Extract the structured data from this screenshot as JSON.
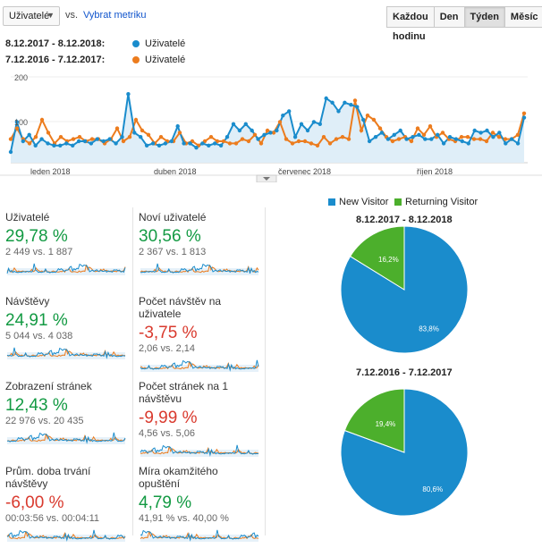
{
  "toolbar": {
    "metric_select": "Uživatelé",
    "vs_label": "vs.",
    "select_metric_link": "Vybrat metriku",
    "buttons": [
      "Každou hodinu",
      "Den",
      "Týden",
      "Měsíc"
    ],
    "active_button": "Týden"
  },
  "legend": {
    "range1": "8.12.2017 - 8.12.2018:",
    "range1_metric": "Uživatelé",
    "range2": "7.12.2016 - 7.12.2017:",
    "range2_metric": "Uživatelé"
  },
  "colors": {
    "blue": "#1a8ccc",
    "orange": "#ec7c1e",
    "green": "#4caf2c",
    "area": "#dfeef8"
  },
  "chart_data": {
    "type": "line",
    "y_ticks": [
      "200",
      "100"
    ],
    "ylim": [
      0,
      200
    ],
    "x_labels": [
      "leden 2018",
      "duben 2018",
      "červenec 2018",
      "říjen 2018"
    ],
    "series": [
      {
        "name": "Uživatelé (8.12.2017 - 8.12.2018)",
        "values": [
          25,
          95,
          50,
          65,
          40,
          55,
          45,
          40,
          40,
          45,
          40,
          50,
          50,
          45,
          55,
          50,
          55,
          45,
          60,
          160,
          70,
          60,
          40,
          45,
          40,
          45,
          50,
          85,
          45,
          45,
          35,
          45,
          40,
          45,
          40,
          60,
          90,
          75,
          90,
          75,
          55,
          65,
          70,
          75,
          110,
          120,
          60,
          90,
          75,
          95,
          90,
          150,
          140,
          120,
          140,
          135,
          130,
          100,
          50,
          60,
          70,
          55,
          65,
          75,
          55,
          60,
          65,
          55,
          55,
          65,
          45,
          60,
          55,
          50,
          45,
          75,
          70,
          75,
          60,
          70,
          45,
          55,
          45,
          105
        ]
      },
      {
        "name": "Uživatelé (7.12.2016 - 7.12.2017)",
        "values": [
          55,
          80,
          55,
          45,
          60,
          100,
          70,
          45,
          60,
          50,
          55,
          60,
          50,
          55,
          55,
          45,
          55,
          80,
          50,
          60,
          100,
          75,
          65,
          45,
          60,
          50,
          50,
          70,
          45,
          50,
          40,
          50,
          60,
          50,
          50,
          45,
          45,
          55,
          50,
          65,
          45,
          75,
          70,
          95,
          55,
          45,
          50,
          50,
          45,
          40,
          60,
          45,
          55,
          60,
          55,
          145,
          75,
          110,
          100,
          80,
          60,
          50,
          55,
          60,
          50,
          80,
          65,
          85,
          60,
          70,
          55,
          50,
          60,
          60,
          55,
          55,
          50,
          70,
          60,
          55,
          55,
          65,
          115
        ]
      }
    ]
  },
  "tiles": [
    {
      "label": "Uživatelé",
      "value": "29,78 %",
      "sub": "2 449 vs. 1 887",
      "color": "green"
    },
    {
      "label": "Noví uživatelé",
      "value": "30,56 %",
      "sub": "2 367 vs. 1 813",
      "color": "green"
    },
    {
      "label": "Návštěvy",
      "value": "24,91 %",
      "sub": "5 044 vs. 4 038",
      "color": "green"
    },
    {
      "label": "Počet návštěv na uživatele",
      "value": "-3,75 %",
      "sub": "2,06 vs. 2,14",
      "color": "red"
    },
    {
      "label": "Zobrazení stránek",
      "value": "12,43 %",
      "sub": "22 976 vs. 20 435",
      "color": "green"
    },
    {
      "label": "Počet stránek na 1 návštěvu",
      "value": "-9,99 %",
      "sub": "4,56 vs. 5,06",
      "color": "red"
    },
    {
      "label": "Prům. doba trvání návštěvy",
      "value": "-6,00 %",
      "sub": "00:03:56 vs. 00:04:11",
      "color": "red"
    },
    {
      "label": "Míra okamžitého opuštění",
      "value": "4,79 %",
      "sub": "41,91 % vs. 40,00 %",
      "color": "green"
    }
  ],
  "pies": {
    "legend_new": "New Visitor",
    "legend_returning": "Returning Visitor",
    "charts": [
      {
        "title": "8.12.2017 - 8.12.2018",
        "new_pct": 83.8,
        "returning_pct": 16.2,
        "new_label": "83,8%",
        "returning_label": "16,2%"
      },
      {
        "title": "7.12.2016 - 7.12.2017",
        "new_pct": 80.6,
        "returning_pct": 19.4,
        "new_label": "80,6%",
        "returning_label": "19,4%"
      }
    ]
  }
}
